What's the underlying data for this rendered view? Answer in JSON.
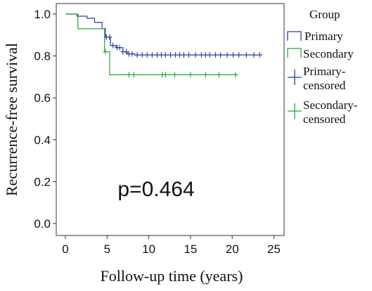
{
  "chart_data": {
    "type": "line",
    "subtype": "kaplan-meier",
    "title": "",
    "xlabel": "Follow-up time (years)",
    "ylabel": "Recurrence-free survival",
    "xlim": [
      0,
      25
    ],
    "ylim": [
      0,
      1
    ],
    "x_ticks": [
      "0",
      "5",
      "10",
      "15",
      "20",
      "25"
    ],
    "y_ticks": [
      "0.0",
      "0.2",
      "0.4",
      "0.6",
      "0.8",
      "1.0"
    ],
    "x_tick_values": [
      0,
      5,
      10,
      15,
      20,
      25
    ],
    "y_tick_values": [
      0,
      0.2,
      0.4,
      0.6,
      0.8,
      1.0
    ],
    "grid": false,
    "legend_position": "right",
    "annotation": "p=0.464",
    "legend": {
      "title": "Group",
      "entries": [
        {
          "label": "Primary",
          "kind": "line",
          "color": "#2b3f9e"
        },
        {
          "label": "Secondary",
          "kind": "line",
          "color": "#22a63a"
        },
        {
          "label_line1": "Primary-",
          "label_line2": "censored",
          "kind": "cross",
          "color": "#2b3f9e"
        },
        {
          "label_line1": "Secondary-",
          "label_line2": "censored",
          "kind": "cross",
          "color": "#22a63a"
        }
      ]
    },
    "series": [
      {
        "name": "Primary",
        "color": "#2b3f9e",
        "steps": [
          [
            0,
            1.0
          ],
          [
            1.4,
            0.99
          ],
          [
            2.6,
            0.98
          ],
          [
            3.5,
            0.96
          ],
          [
            4.4,
            0.93
          ],
          [
            4.8,
            0.89
          ],
          [
            5.4,
            0.85
          ],
          [
            6.1,
            0.84
          ],
          [
            6.9,
            0.82
          ],
          [
            7.4,
            0.81
          ],
          [
            8.3,
            0.805
          ],
          [
            23.5,
            0.805
          ]
        ],
        "censored": [
          4.9,
          5.3,
          5.7,
          6.2,
          6.5,
          6.9,
          7.3,
          7.6,
          8.0,
          8.6,
          9.2,
          9.8,
          10.4,
          11.0,
          11.5,
          12.0,
          12.6,
          13.2,
          13.7,
          14.2,
          14.8,
          15.6,
          16.3,
          16.8,
          17.3,
          18.0,
          18.6,
          19.4,
          20.1,
          20.8,
          21.7,
          22.6,
          23.3
        ]
      },
      {
        "name": "Secondary",
        "color": "#22a63a",
        "steps": [
          [
            0,
            1.0
          ],
          [
            1.5,
            0.93
          ],
          [
            4.7,
            0.82
          ],
          [
            5.3,
            0.71
          ],
          [
            20.6,
            0.71
          ]
        ],
        "censored": [
          4.8,
          7.6,
          8.2,
          11.6,
          12.0,
          13.1,
          15.0,
          16.8,
          18.4,
          20.4
        ]
      }
    ]
  }
}
